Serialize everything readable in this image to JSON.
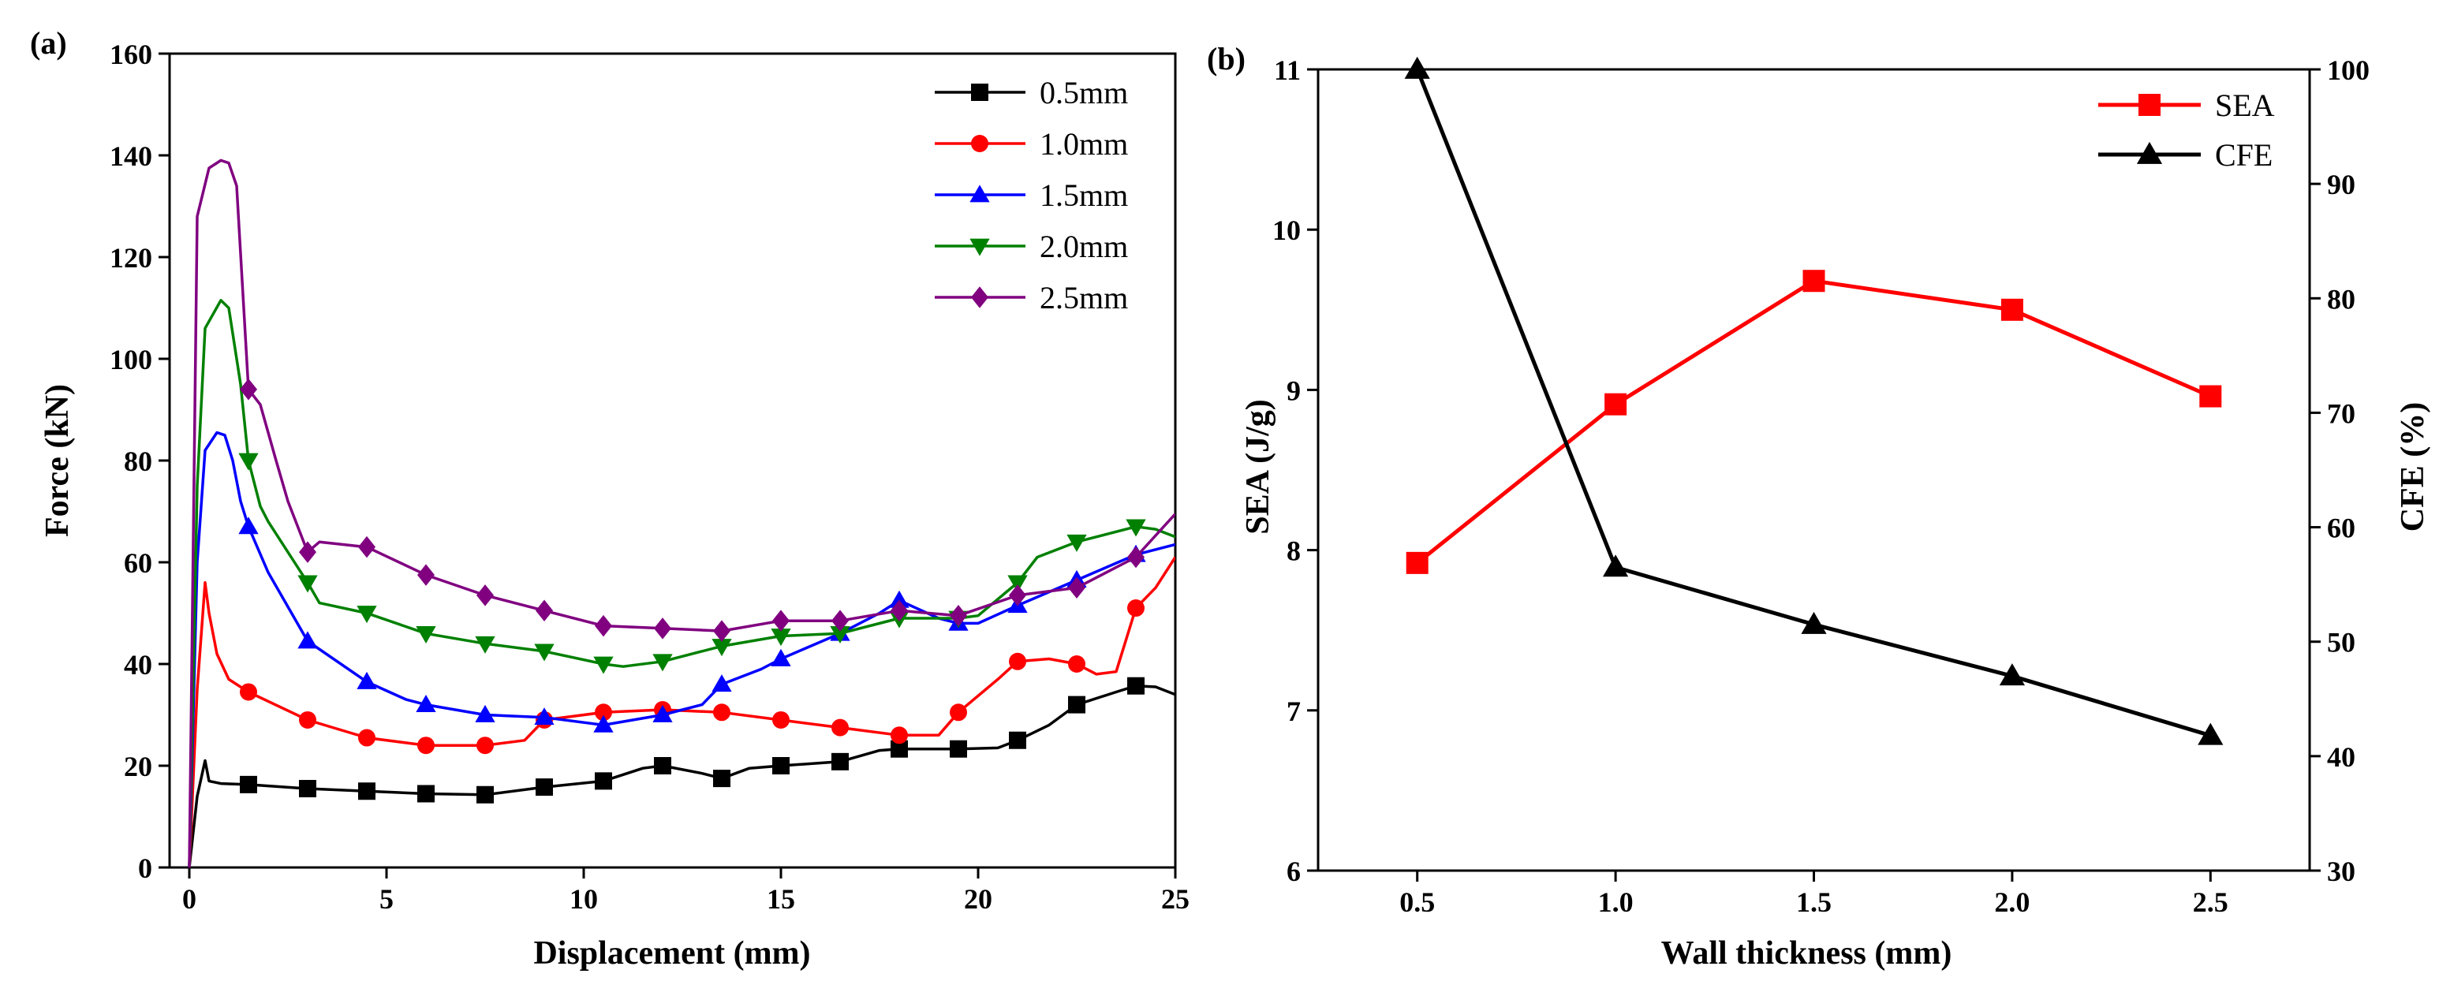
{
  "chart_data": [
    {
      "type": "line",
      "panel_label": "(a)",
      "xlabel": "Displacement (mm)",
      "ylabel": "Force (kN)",
      "xlim": [
        -0.5,
        25
      ],
      "ylim": [
        0,
        160
      ],
      "xticks": [
        0,
        5,
        10,
        15,
        20,
        25
      ],
      "yticks": [
        0,
        20,
        40,
        60,
        80,
        100,
        120,
        140,
        160
      ],
      "legend": "top-right",
      "series": [
        {
          "name": "0.5mm",
          "color": "#000000",
          "marker": "square",
          "x": [
            0,
            0.2,
            0.4,
            0.5,
            0.8,
            1.5,
            3,
            4.5,
            6,
            7.5,
            9,
            10.5,
            11.5,
            12,
            13,
            13.5,
            14.2,
            15,
            16.5,
            17.5,
            18,
            19.5,
            20.5,
            21,
            21.8,
            22.5,
            23.5,
            24,
            24.5,
            25
          ],
          "y": [
            0,
            14,
            21,
            17,
            16.5,
            16.3,
            15.5,
            15,
            14.5,
            14.3,
            15.8,
            17,
            19.5,
            20,
            18.5,
            17.5,
            19.5,
            20,
            20.8,
            23,
            23.3,
            23.3,
            23.5,
            25,
            28,
            32,
            34.5,
            35.7,
            35.5,
            34
          ]
        },
        {
          "name": "1.0mm",
          "color": "#ff0000",
          "marker": "circle",
          "x": [
            0,
            0.2,
            0.4,
            0.5,
            0.7,
            1,
            1.5,
            3,
            4.5,
            6,
            7.5,
            8.5,
            9,
            10.5,
            12,
            13.5,
            15,
            16.5,
            18,
            19,
            19.5,
            20.5,
            21,
            21.8,
            22.5,
            23,
            23.5,
            24,
            24.5,
            25
          ],
          "y": [
            0,
            35,
            56,
            50,
            42,
            37,
            34.5,
            29,
            25.5,
            24,
            24,
            25,
            29,
            30.5,
            31,
            30.5,
            29,
            27.5,
            26,
            26,
            30.5,
            37,
            40.5,
            41,
            40,
            38,
            38.5,
            51,
            55,
            61
          ]
        },
        {
          "name": "1.5mm",
          "color": "#0000ff",
          "marker": "triangle",
          "x": [
            0,
            0.2,
            0.4,
            0.7,
            0.9,
            1.1,
            1.3,
            1.5,
            2,
            3,
            4.5,
            5.5,
            6,
            7.5,
            9,
            10.5,
            12,
            13,
            13.5,
            14.5,
            15,
            16.5,
            17.5,
            18,
            19,
            19.5,
            20,
            21,
            22.5,
            24,
            25
          ],
          "y": [
            0,
            60,
            82,
            85.5,
            85,
            80,
            72,
            67,
            58,
            44.5,
            36.5,
            33,
            32,
            30,
            29.5,
            28,
            30,
            32,
            36,
            39,
            41,
            46,
            50,
            52.5,
            49,
            48,
            48,
            51.5,
            56.5,
            61.5,
            63.5
          ]
        },
        {
          "name": "2.0mm",
          "color": "#008000",
          "marker": "triangle-down",
          "x": [
            0,
            0.2,
            0.4,
            0.8,
            1,
            1.3,
            1.5,
            1.8,
            2,
            3,
            3.3,
            4.5,
            6,
            7.5,
            9,
            10.5,
            11,
            12,
            13.5,
            15,
            16.5,
            18,
            19.5,
            20,
            21,
            21.5,
            22.5,
            24,
            24.5,
            25
          ],
          "y": [
            0,
            75,
            106,
            111.5,
            110,
            95,
            80,
            71,
            68,
            56,
            52,
            50,
            46,
            44,
            42.5,
            40,
            39.5,
            40.5,
            43.5,
            45.5,
            46,
            49,
            49,
            49.5,
            56,
            61,
            64,
            67,
            66.5,
            65
          ]
        },
        {
          "name": "2.5mm",
          "color": "#800080",
          "marker": "diamond",
          "x": [
            0,
            0.2,
            0.5,
            0.8,
            1,
            1.2,
            1.5,
            1.8,
            2.2,
            2.5,
            3,
            3.3,
            4.5,
            6,
            7.5,
            9,
            10.5,
            12,
            13.5,
            15,
            16.5,
            18,
            19.5,
            21,
            22.5,
            24,
            25
          ],
          "y": [
            0,
            128,
            137.5,
            139,
            138.5,
            134,
            94,
            91,
            80,
            72,
            62,
            64,
            63,
            57.5,
            53.5,
            50.5,
            47.5,
            47,
            46.5,
            48.5,
            48.5,
            50.5,
            49.5,
            53.5,
            55,
            61,
            69.5
          ]
        }
      ]
    },
    {
      "type": "line",
      "panel_label": "(b)",
      "xlabel": "Wall thickness (mm)",
      "ylabel": "SEA (J/g)",
      "y2label": "CFE (%)",
      "xlim": [
        0.25,
        2.75
      ],
      "ylim": [
        6,
        11
      ],
      "y2lim": [
        30,
        100
      ],
      "xticks": [
        0.5,
        1.0,
        1.5,
        2.0,
        2.5
      ],
      "xtick_labels": [
        "0.5",
        "1.0",
        "1.5",
        "2.0",
        "2.5"
      ],
      "yticks": [
        6,
        7,
        8,
        9,
        10,
        11
      ],
      "y2ticks": [
        30,
        40,
        50,
        60,
        70,
        80,
        90,
        100
      ],
      "legend": "top-right",
      "series": [
        {
          "name": "SEA",
          "color": "#ff0000",
          "marker": "square",
          "axis": "left",
          "x": [
            0.5,
            1.0,
            1.5,
            2.0,
            2.5
          ],
          "y": [
            7.92,
            8.91,
            9.68,
            9.5,
            8.96
          ]
        },
        {
          "name": "CFE",
          "color": "#000000",
          "marker": "triangle",
          "axis": "right",
          "x": [
            0.5,
            1.0,
            1.5,
            2.0,
            2.5
          ],
          "y": [
            100,
            56.5,
            51.5,
            47,
            41.8
          ]
        }
      ]
    }
  ]
}
